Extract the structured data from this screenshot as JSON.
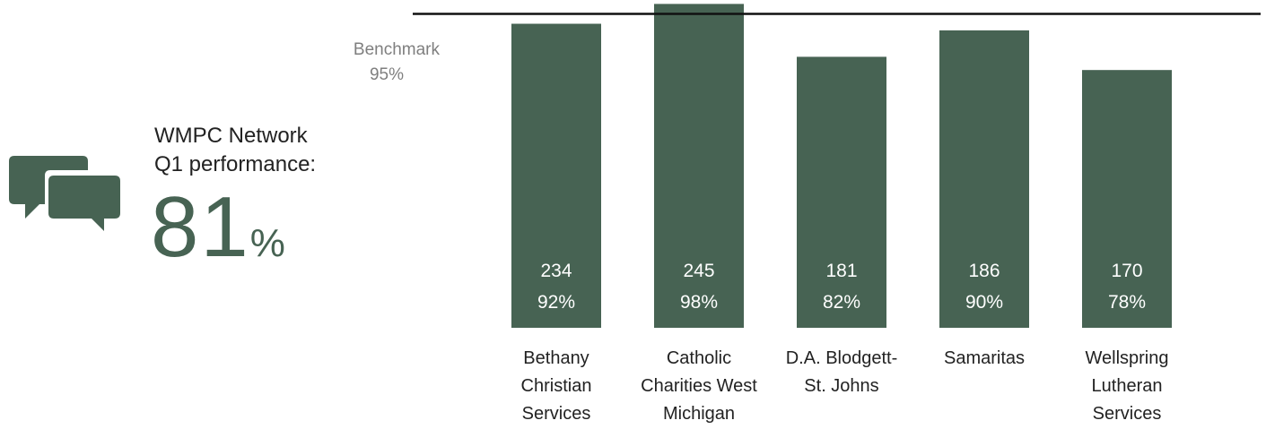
{
  "summary": {
    "title_line1": "WMPC Network",
    "title_line2": "Q1 performance:",
    "value": "81",
    "unit": "%",
    "icon": "speech-bubbles-icon"
  },
  "benchmark": {
    "label": "Benchmark",
    "value_text": "95%",
    "value": 95
  },
  "colors": {
    "bar": "#476353",
    "bar_text": "#ffffff",
    "benchmark_line": "#111111",
    "label": "#222222",
    "muted": "#7f7f7f"
  },
  "chart_data": {
    "type": "bar",
    "categories": [
      [
        "Bethany",
        "Christian",
        "Services"
      ],
      [
        "Catholic",
        "Charities West",
        "Michigan"
      ],
      [
        "D.A. Blodgett-",
        "St. Johns"
      ],
      [
        "Samaritas"
      ],
      [
        "Wellspring",
        "Lutheran",
        "Services"
      ]
    ],
    "counts": [
      234,
      245,
      181,
      186,
      170
    ],
    "values": [
      92,
      98,
      82,
      90,
      78
    ],
    "value_labels": [
      "92%",
      "98%",
      "82%",
      "90%",
      "78%"
    ],
    "ylim": [
      0,
      100
    ],
    "benchmark": 95,
    "grid": false,
    "legend": "none"
  }
}
